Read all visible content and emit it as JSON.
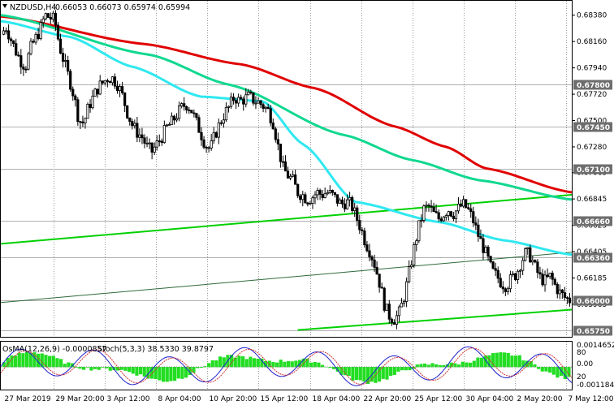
{
  "window": {
    "symbol_line": "NZDUSD,H4",
    "ohlc_line": "0.66053 0.66073 0.65974 0.65994"
  },
  "indicator": {
    "label_osma": "OsMA(12,26,9) -0.0000857",
    "label_stoch": "Stoch(5,3,3) 38.5330 39.8797"
  },
  "colors": {
    "ma_red": "#e00000",
    "ma_green": "#10d890",
    "ma_cyan": "#30e8f0",
    "trend_green": "#00d000",
    "trend_dark": "#2e6a3a",
    "candle": "#000000",
    "level_tag": "#6e6e6e",
    "osma_bar": "#22dd22",
    "stoch_main": "#1e1ecc",
    "stoch_signal": "#d03030"
  },
  "chart_data": {
    "type": "candlestick",
    "symbol": "NZDUSD",
    "timeframe": "H4",
    "y_axis_ticks": [
      "0.68380",
      "0.68160",
      "0.67940",
      "0.67720",
      "0.67500",
      "0.67280",
      "0.67065",
      "0.66845",
      "0.66625",
      "0.66405",
      "0.66185",
      "0.65965"
    ],
    "ylim": [
      0.657,
      0.685
    ],
    "highlighted_levels": [
      "0.67800",
      "0.67450",
      "0.67100",
      "0.66660",
      "0.66360",
      "0.66000",
      "0.65750"
    ],
    "x_axis_labels": [
      "27 Mar 2019",
      "29 Mar 20:00",
      "3 Apr 12:00",
      "8 Apr 04:00",
      "10 Apr 20:00",
      "15 Apr 12:00",
      "18 Apr 04:00",
      "22 Apr 20:00",
      "25 Apr 12:00",
      "30 Apr 04:00",
      "2 May 20:00",
      "7 May 12:00"
    ],
    "price_path": [
      0.6822,
      0.6828,
      0.6818,
      0.6808,
      0.68,
      0.6795,
      0.681,
      0.6818,
      0.6826,
      0.6838,
      0.6836,
      0.6834,
      0.6812,
      0.6798,
      0.6785,
      0.677,
      0.675,
      0.6748,
      0.6762,
      0.677,
      0.6778,
      0.6782,
      0.6786,
      0.6785,
      0.678,
      0.677,
      0.6756,
      0.6746,
      0.674,
      0.6736,
      0.6728,
      0.6724,
      0.673,
      0.6736,
      0.6744,
      0.6748,
      0.6754,
      0.676,
      0.6764,
      0.676,
      0.675,
      0.674,
      0.673,
      0.6726,
      0.6738,
      0.6748,
      0.6756,
      0.6762,
      0.677,
      0.6766,
      0.6768,
      0.677,
      0.6767,
      0.6765,
      0.6762,
      0.6758,
      0.6748,
      0.6728,
      0.671,
      0.6704,
      0.67,
      0.669,
      0.6688,
      0.6684,
      0.6686,
      0.669,
      0.6688,
      0.669,
      0.6688,
      0.6684,
      0.668,
      0.6682,
      0.668,
      0.667,
      0.666,
      0.6648,
      0.664,
      0.6628,
      0.6612,
      0.6594,
      0.6586,
      0.6584,
      0.659,
      0.6604,
      0.6624,
      0.6644,
      0.6662,
      0.6676,
      0.6678,
      0.6672,
      0.6668,
      0.6672,
      0.6676,
      0.6672,
      0.6676,
      0.668,
      0.6676,
      0.6668,
      0.6656,
      0.6646,
      0.6636,
      0.6624,
      0.662,
      0.6614,
      0.6612,
      0.6618,
      0.6622,
      0.6632,
      0.664,
      0.6636,
      0.6626,
      0.6618,
      0.6616,
      0.662,
      0.6612,
      0.6606,
      0.6602,
      0.66
    ],
    "moving_averages": [
      {
        "color_key": "ma_red",
        "points": [
          [
            0.6837,
            0
          ],
          [
            0.6814,
            0.25
          ],
          [
            0.6797,
            0.42
          ],
          [
            0.6777,
            0.55
          ],
          [
            0.6745,
            0.69
          ],
          [
            0.6728,
            0.78
          ],
          [
            0.671,
            0.85
          ],
          [
            0.669,
            1.0
          ]
        ]
      },
      {
        "color_key": "ma_green",
        "points": [
          [
            0.6838,
            0
          ],
          [
            0.6805,
            0.26
          ],
          [
            0.678,
            0.4
          ],
          [
            0.6738,
            0.6
          ],
          [
            0.6717,
            0.72
          ],
          [
            0.67,
            0.84
          ],
          [
            0.6684,
            1.0
          ]
        ]
      },
      {
        "color_key": "ma_cyan",
        "points": [
          [
            0.6833,
            0
          ],
          [
            0.682,
            0.12
          ],
          [
            0.6795,
            0.23
          ],
          [
            0.677,
            0.35
          ],
          [
            0.6766,
            0.46
          ],
          [
            0.673,
            0.53
          ],
          [
            0.6682,
            0.62
          ],
          [
            0.6665,
            0.77
          ],
          [
            0.665,
            0.88
          ],
          [
            0.6638,
            1.0
          ]
        ]
      }
    ],
    "trend_lines": [
      {
        "color_key": "trend_green",
        "from": [
          0.6647,
          0.0
        ],
        "to": [
          0.6688,
          1.0
        ]
      },
      {
        "color_key": "trend_dark",
        "from": [
          0.6598,
          0.0
        ],
        "to": [
          0.664,
          1.0
        ]
      },
      {
        "color_key": "trend_green",
        "from": [
          0.6575,
          0.52
        ],
        "to": [
          0.6592,
          1.0
        ]
      }
    ],
    "indicator_axis_ticks": [
      "0.0014652",
      "80",
      "0.00",
      "20",
      "-0.0011840"
    ]
  }
}
